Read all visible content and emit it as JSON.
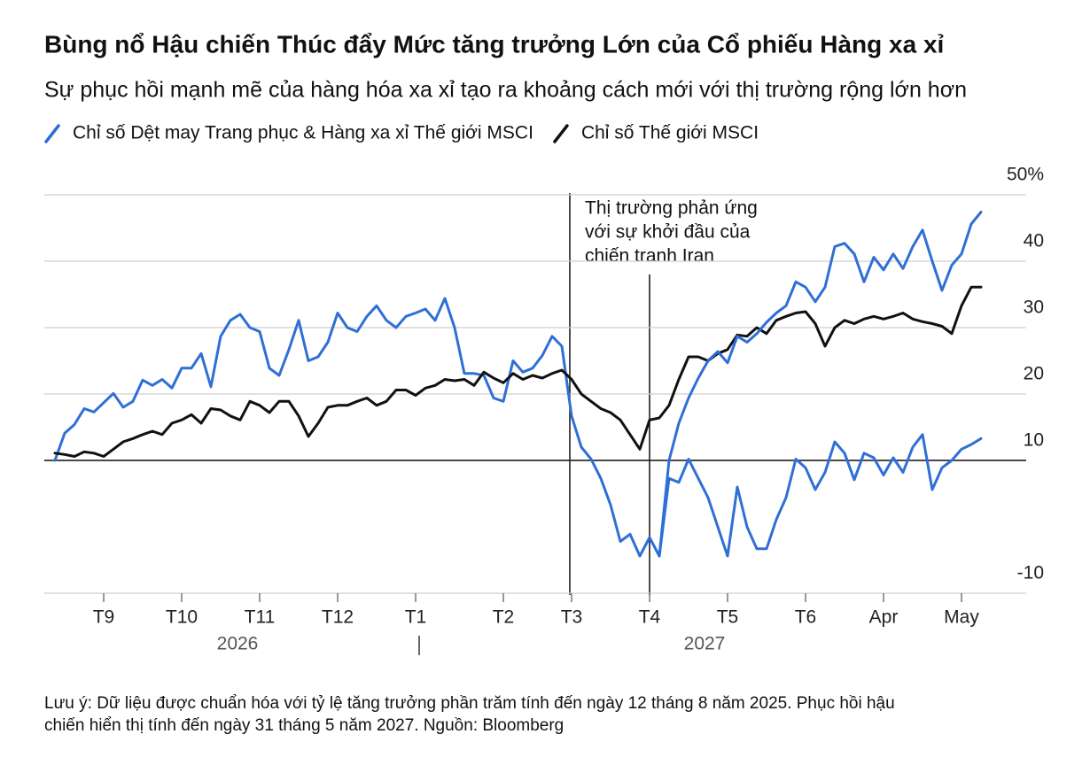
{
  "chart_data": {
    "type": "line",
    "title": "Bùng nổ Hậu chiến Thúc đẩy Mức tăng trưởng Lớn của Cổ phiếu Hàng xa xỉ",
    "subtitle": "Sự phục hồi mạnh mẽ của hàng hóa xa xỉ tạo ra khoảng cách mới với thị trường rộng lớn hơn",
    "annotation": [
      "Thị trường phản ứng",
      "với sự khởi đầu của",
      "chiến tranh Iran"
    ],
    "note": [
      "Lưu ý: Dữ liệu được chuẩn hóa với tỷ lệ tăng trưởng phần trăm tính đến ngày 12 tháng 8 năm 2025. Phục hồi hậu",
      "chiến hiển thị tính đến ngày 31 tháng 5 năm 2027. Nguồn: Bloomberg"
    ],
    "years": [
      "2026",
      "2027"
    ],
    "categories": [
      null,
      null,
      null,
      null,
      null,
      "T9",
      null,
      null,
      null,
      null,
      null,
      null,
      null,
      "T10",
      null,
      null,
      null,
      null,
      null,
      null,
      null,
      "T11",
      null,
      null,
      null,
      null,
      null,
      null,
      null,
      "T12",
      null,
      null,
      null,
      null,
      null,
      null,
      null,
      "T1",
      null,
      null,
      null,
      null,
      null,
      null,
      null,
      null,
      "T2",
      null,
      null,
      null,
      null,
      null,
      null,
      "T3",
      null,
      null,
      null,
      null,
      null,
      null,
      null,
      "T4",
      null,
      null,
      null,
      null,
      null,
      null,
      null,
      "T5",
      null,
      null,
      null,
      null,
      null,
      null,
      null,
      "T6",
      null,
      null,
      null,
      null,
      null,
      null,
      null,
      "Apr",
      null,
      null,
      null,
      null,
      null,
      null,
      null,
      "May",
      null,
      null
    ],
    "series": [
      {
        "name": "Chỉ số Dệt may Trang phục & Hàng xa xỉ Thế giới MSCI",
        "color": "#2f6fd6",
        "values": [
          10,
          14.1,
          15.4,
          17.8,
          17.3,
          18.7,
          20.1,
          18.0,
          18.9,
          22.1,
          21.3,
          22.2,
          20.9,
          23.9,
          23.9,
          26.1,
          21.1,
          28.7,
          31.1,
          32.0,
          30.0,
          29.4,
          23.9,
          22.8,
          26.7,
          31.1,
          25.0,
          25.6,
          27.8,
          32.2,
          30.0,
          29.4,
          31.7,
          33.3,
          31.1,
          30.0,
          31.7,
          32.2,
          32.8,
          31.1,
          34.4,
          30.0,
          23.1,
          23.1,
          22.8,
          19.4,
          18.9,
          25.0,
          23.3,
          23.9,
          25.8,
          28.7,
          27.2,
          16.7,
          12.0,
          10.2,
          7.3,
          3.3,
          -2.2,
          -1.1,
          -4.4,
          -1.6,
          -4.4,
          7.3,
          6.7,
          10.2,
          7.3,
          4.4,
          0.0,
          -4.4,
          6.0,
          0.0,
          -3.3,
          -3.3,
          1.1,
          4.4,
          10.2,
          8.9,
          5.6,
          8.2,
          12.8,
          11.1,
          7.1,
          11.1,
          10.4,
          7.8,
          10.4,
          8.2,
          12.0,
          13.9,
          5.6,
          8.9,
          10.0,
          11.7,
          12.4,
          13.3
        ]
      },
      {
        "name": "Chỉ số Thế giới MSCI",
        "color": "#111111",
        "values": [
          11.1,
          10.9,
          10.6,
          11.3,
          11.1,
          10.6,
          11.7,
          12.8,
          13.3,
          13.9,
          14.4,
          13.9,
          15.6,
          16.1,
          16.9,
          15.6,
          17.8,
          17.6,
          16.7,
          16.1,
          18.9,
          18.3,
          17.2,
          18.9,
          18.9,
          16.7,
          13.6,
          15.6,
          18.0,
          18.3,
          18.3,
          18.9,
          19.4,
          18.3,
          18.9,
          20.6,
          20.6,
          19.8,
          20.9,
          21.3,
          22.2,
          22.0,
          22.2,
          21.3,
          23.3,
          22.4,
          21.7,
          23.1,
          22.2,
          22.8,
          22.4,
          23.1,
          23.6,
          22.2,
          20.0,
          18.9,
          17.8,
          17.2,
          16.1,
          13.9,
          11.7,
          16.1,
          16.4,
          18.3,
          22.2,
          25.6,
          25.6,
          25.0,
          26.1,
          26.7,
          28.9,
          28.7,
          30.0,
          29.1,
          31.1,
          31.7,
          32.2,
          32.4,
          30.6,
          27.2,
          30.0,
          31.1,
          30.6,
          31.3,
          31.7,
          31.3,
          31.7,
          32.2,
          31.3,
          30.9,
          30.6,
          30.2,
          29.1,
          33.3,
          36.1,
          36.1
        ]
      },
      {
        "color": "#2f6fd6",
        "values": [
          null,
          null,
          null,
          null,
          null,
          null,
          null,
          null,
          null,
          null,
          null,
          null,
          null,
          null,
          null,
          null,
          null,
          null,
          null,
          null,
          null,
          null,
          null,
          null,
          null,
          null,
          null,
          null,
          null,
          null,
          null,
          null,
          null,
          null,
          null,
          null,
          null,
          null,
          null,
          null,
          null,
          null,
          null,
          null,
          null,
          null,
          null,
          null,
          null,
          null,
          null,
          null,
          null,
          null,
          null,
          null,
          null,
          null,
          null,
          null,
          null,
          null,
          -4.4,
          10,
          15.6,
          19.4,
          22.4,
          25.0,
          26.4,
          24.7,
          28.7,
          27.8,
          29.1,
          30.8,
          32.2,
          33.3,
          36.9,
          36.1,
          33.9,
          36.1,
          42.2,
          42.7,
          41.1,
          36.9,
          40.6,
          38.7,
          41.1,
          38.9,
          42.2,
          44.7,
          40.0,
          35.6,
          39.4,
          41.1,
          45.6,
          47.4
        ]
      }
    ],
    "ylim": [
      -10,
      50
    ],
    "yticks": [
      {
        "value": 50,
        "label": "50%"
      },
      40,
      30,
      20,
      10,
      -10
    ],
    "reference_line": 10,
    "grid": true
  }
}
